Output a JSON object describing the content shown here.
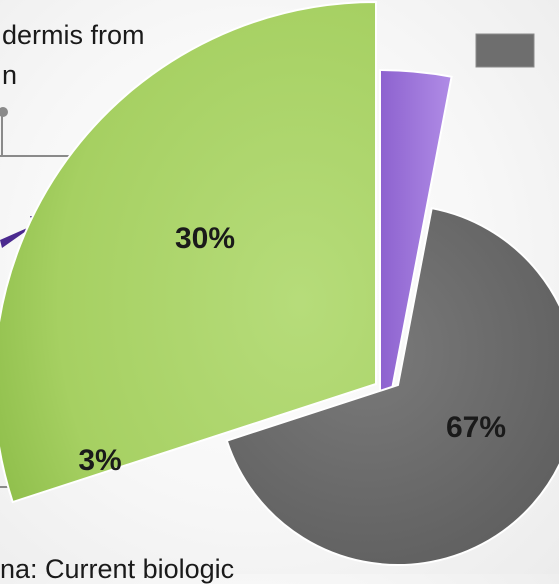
{
  "top_text": {
    "line1": "dermis from",
    "line2": "n"
  },
  "bottom_text": "na: Current biologic",
  "legend": {
    "swatch_color": "#6e6e6e"
  },
  "chart_data": {
    "type": "pie",
    "slices": [
      {
        "label": "30%",
        "value": 30,
        "color": "#a9d46a"
      },
      {
        "label": "3%",
        "value": 3,
        "color": "#9a73d8"
      },
      {
        "label": "67%",
        "value": 67,
        "color": "#6d6d6d"
      }
    ],
    "exploded": true
  }
}
